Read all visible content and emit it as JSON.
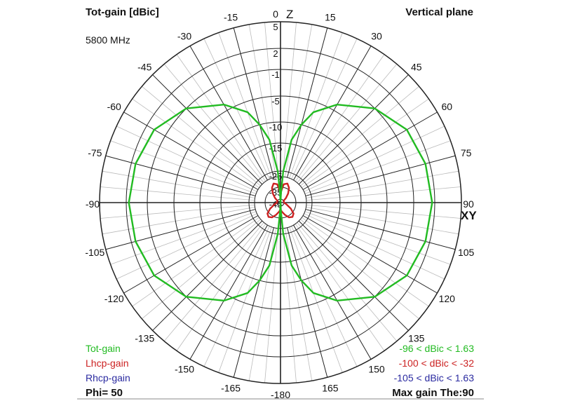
{
  "header": {
    "title": "Tot-gain [dBic]",
    "plane": "Vertical plane",
    "frequency": "5800 MHz"
  },
  "axes": {
    "top_label": "Z",
    "right_label": "XY"
  },
  "legend": {
    "tot": "Tot-gain",
    "lhcp": "Lhcp-gain",
    "rhcp": "Rhcp-gain",
    "phi": "Phi= 50",
    "tot_range": "-96 < dBic < 1.63",
    "lhcp_range": "-100 < dBic < -32",
    "rhcp_range": "-105 < dBic < 1.63",
    "max_gain": "Max gain The:90"
  },
  "colors": {
    "tot": "#22bb22",
    "lhcp": "#cc2222",
    "rhcp": "#2a2aa0",
    "grid": "#222222",
    "minor_grid": "#bbbbbb"
  },
  "chart_data": {
    "type": "polar",
    "angle_ticks": [
      0,
      15,
      30,
      45,
      60,
      75,
      90,
      105,
      120,
      135,
      150,
      165,
      -180,
      -165,
      -150,
      -135,
      -120,
      -105,
      -90,
      -75,
      -60,
      -45,
      -30,
      -15
    ],
    "ring_levels": [
      5,
      2,
      -1,
      -5,
      -10,
      -15,
      -25,
      -35,
      -45
    ],
    "series": [
      {
        "name": "Tot-gain",
        "theta": [
          0,
          3,
          5,
          10,
          15,
          20,
          30,
          45,
          60,
          75,
          90,
          105,
          120,
          135,
          150,
          160,
          165,
          170,
          175,
          177,
          180
        ],
        "gain": [
          -96,
          -40,
          -25,
          -14,
          -10,
          -7,
          -4,
          -1,
          0.8,
          1.4,
          1.63,
          1.4,
          0.8,
          -1,
          -4,
          -7,
          -10,
          -14,
          -25,
          -40,
          -96
        ],
        "symmetric": true
      },
      {
        "name": "Lhcp-gain",
        "theta": [
          0,
          10,
          20,
          30,
          40,
          50,
          60,
          75,
          90,
          105,
          120,
          130,
          140,
          150,
          160,
          170,
          180
        ],
        "gain": [
          -40,
          -33,
          -32,
          -34,
          -38,
          -42,
          -45,
          -45,
          -45,
          -43,
          -38,
          -34,
          -33,
          -34,
          -37,
          -40,
          -42
        ],
        "symmetric": true
      }
    ]
  }
}
